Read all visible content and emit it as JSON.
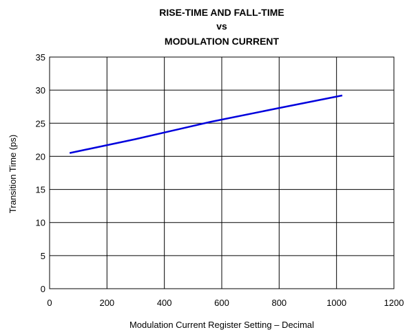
{
  "chart_data": {
    "type": "line",
    "title_lines": [
      "RISE-TIME AND FALL-TIME",
      "vs",
      "MODULATION CURRENT"
    ],
    "xlabel": "Modulation Current Register Setting – Decimal",
    "ylabel": "Transition Time (ps)",
    "xlim": [
      0,
      1200
    ],
    "ylim": [
      0,
      35
    ],
    "xticks": [
      0,
      200,
      400,
      600,
      800,
      1000,
      1200
    ],
    "yticks": [
      0,
      5,
      10,
      15,
      20,
      25,
      30,
      35
    ],
    "grid": true,
    "series": [
      {
        "x": [
          70,
          300,
          560,
          800,
          1020
        ],
        "y": [
          20.5,
          22.6,
          25.2,
          27.3,
          29.2
        ],
        "color": "#0000dd"
      }
    ]
  }
}
